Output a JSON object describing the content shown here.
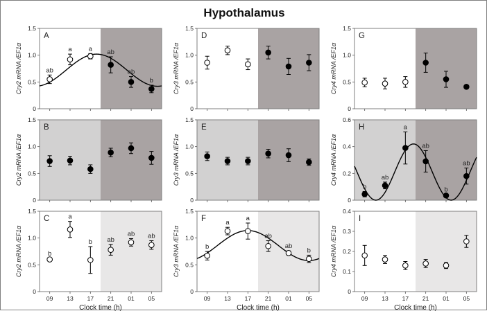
{
  "title": "Hypothalamus",
  "colors": {
    "dark_shade": "#a9a3a3",
    "light_shade": "#d2d1d1",
    "lighter_shade": "#e8e7e7",
    "frame": "#7f7f7f",
    "point_fill_dark": "#000000",
    "point_fill_open": "#ffffff",
    "curve": "#000000"
  },
  "x_axis": {
    "tick_labels": [
      "09",
      "13",
      "17",
      "21",
      "01",
      "05"
    ],
    "label": "Clock time (h)"
  },
  "chart_data": [
    {
      "id": "A",
      "type": "scatter",
      "label": "A",
      "ylabel": "Cry2 mRNA /EF1α",
      "ylim": [
        0,
        1.5
      ],
      "yticks": [
        "0",
        "0.5",
        "1.0",
        "1.5"
      ],
      "shading": [
        {
          "from": 0,
          "to": 3,
          "tone": "none"
        },
        {
          "from": 3,
          "to": 6,
          "tone": "dark"
        }
      ],
      "values": [
        0.55,
        0.92,
        0.98,
        0.82,
        0.5,
        0.37
      ],
      "errors": [
        0.08,
        0.1,
        0.05,
        0.15,
        0.1,
        0.07
      ],
      "filled": [
        false,
        false,
        false,
        true,
        true,
        true
      ],
      "sig": [
        "ab",
        "a",
        "a",
        "ab",
        "ab",
        "b"
      ],
      "fit": {
        "mesor": 0.72,
        "amplitude": 0.3,
        "acrophase_index": 2.3
      }
    },
    {
      "id": "D",
      "type": "scatter",
      "label": "D",
      "ylabel": "Cry3 mRNA /EF1α",
      "ylim": [
        0,
        1.5
      ],
      "yticks": [
        "0",
        "0.5",
        "1.0",
        "1.5"
      ],
      "shading": [
        {
          "from": 0,
          "to": 3,
          "tone": "none"
        },
        {
          "from": 3,
          "to": 6,
          "tone": "dark"
        }
      ],
      "values": [
        0.86,
        1.09,
        0.83,
        1.05,
        0.79,
        0.86
      ],
      "errors": [
        0.12,
        0.08,
        0.1,
        0.12,
        0.15,
        0.15
      ],
      "filled": [
        false,
        false,
        false,
        true,
        true,
        true
      ],
      "sig": []
    },
    {
      "id": "G",
      "type": "scatter",
      "label": "G",
      "ylabel": "Cry4 mRNA /EF1α",
      "ylim": [
        0,
        1.5
      ],
      "yticks": [
        "0",
        "0.5",
        "1.0",
        "1.5"
      ],
      "shading": [
        {
          "from": 0,
          "to": 3,
          "tone": "none"
        },
        {
          "from": 3,
          "to": 6,
          "tone": "dark"
        }
      ],
      "values": [
        0.49,
        0.47,
        0.5,
        0.86,
        0.55,
        0.41
      ],
      "errors": [
        0.08,
        0.1,
        0.1,
        0.18,
        0.15,
        0.02
      ],
      "filled": [
        false,
        false,
        false,
        true,
        true,
        true
      ],
      "sig": []
    },
    {
      "id": "B",
      "type": "scatter",
      "label": "B",
      "ylabel": "Cry2 mRNA /EF1α",
      "ylim": [
        0,
        1.5
      ],
      "yticks": [
        "0",
        "0.5",
        "1.0",
        "1.5"
      ],
      "shading": [
        {
          "from": 0,
          "to": 3,
          "tone": "light"
        },
        {
          "from": 3,
          "to": 6,
          "tone": "dark"
        }
      ],
      "values": [
        0.73,
        0.74,
        0.58,
        0.89,
        0.97,
        0.79
      ],
      "errors": [
        0.1,
        0.08,
        0.08,
        0.08,
        0.1,
        0.12
      ],
      "filled": [
        true,
        true,
        true,
        true,
        true,
        true
      ],
      "sig": []
    },
    {
      "id": "E",
      "type": "scatter",
      "label": "E",
      "ylabel": "Cry3 mRNA /EF1α",
      "ylim": [
        0,
        1.5
      ],
      "yticks": [
        "0",
        "0.5",
        "1.0",
        "1.5"
      ],
      "shading": [
        {
          "from": 0,
          "to": 3,
          "tone": "light"
        },
        {
          "from": 3,
          "to": 6,
          "tone": "dark"
        }
      ],
      "values": [
        0.82,
        0.73,
        0.73,
        0.87,
        0.84,
        0.71
      ],
      "errors": [
        0.08,
        0.07,
        0.07,
        0.08,
        0.12,
        0.06
      ],
      "filled": [
        true,
        true,
        true,
        true,
        true,
        true
      ],
      "sig": []
    },
    {
      "id": "H",
      "type": "scatter",
      "label": "H",
      "ylabel": "Cry4 mRNA /EF1α",
      "ylim": [
        0,
        0.6
      ],
      "yticks": [
        "0",
        "0.2",
        "0.4",
        "0.6"
      ],
      "shading": [
        {
          "from": 0,
          "to": 3,
          "tone": "light"
        },
        {
          "from": 3,
          "to": 6,
          "tone": "dark"
        }
      ],
      "values": [
        0.045,
        0.11,
        0.39,
        0.29,
        0.035,
        0.18
      ],
      "errors": [
        0.02,
        0.025,
        0.12,
        0.08,
        0.01,
        0.06
      ],
      "filled": [
        true,
        true,
        true,
        true,
        true,
        true
      ],
      "sig": [
        "b",
        "ab",
        "a",
        "ab",
        "b",
        "ab"
      ],
      "fit": {
        "mesor": 0.21,
        "amplitude": 0.21,
        "acrophase_index": 2.4,
        "period_index": 3.7
      }
    },
    {
      "id": "C",
      "type": "scatter",
      "label": "C",
      "ylabel": "Cry2 mRNA /EF1α",
      "ylim": [
        0,
        1.5
      ],
      "yticks": [
        "0",
        "0.5",
        "1.0",
        "1.5"
      ],
      "shading": [
        {
          "from": 0,
          "to": 3,
          "tone": "none"
        },
        {
          "from": 3,
          "to": 6,
          "tone": "lighter"
        }
      ],
      "values": [
        0.6,
        1.16,
        0.59,
        0.78,
        0.92,
        0.87
      ],
      "errors": [
        0.02,
        0.15,
        0.25,
        0.1,
        0.07,
        0.08
      ],
      "filled": [
        false,
        false,
        false,
        false,
        false,
        false
      ],
      "sig": [
        "b",
        "a",
        "b",
        "ab",
        "ab",
        "ab"
      ]
    },
    {
      "id": "F",
      "type": "scatter",
      "label": "F",
      "ylabel": "Cry3 mRNA /EF1α",
      "ylim": [
        0,
        1.5
      ],
      "yticks": [
        "0",
        "0.5",
        "1.0",
        "1.5"
      ],
      "shading": [
        {
          "from": 0,
          "to": 3,
          "tone": "none"
        },
        {
          "from": 3,
          "to": 6,
          "tone": "lighter"
        }
      ],
      "values": [
        0.67,
        1.13,
        1.13,
        0.85,
        0.72,
        0.61
      ],
      "errors": [
        0.08,
        0.07,
        0.15,
        0.1,
        0.04,
        0.07
      ],
      "filled": [
        false,
        false,
        false,
        false,
        false,
        false
      ],
      "sig": [
        "b",
        "a",
        "a",
        "ab",
        "ab",
        "b"
      ],
      "fit": {
        "mesor": 0.86,
        "amplitude": 0.28,
        "acrophase_index": 2.0
      }
    },
    {
      "id": "I",
      "type": "scatter",
      "label": "I",
      "ylabel": "Cry4 mRNA /EF1α",
      "ylim": [
        0,
        0.4
      ],
      "yticks": [
        "0",
        "0.1",
        "0.2",
        "0.3",
        "0.4"
      ],
      "shading": [
        {
          "from": 0,
          "to": 3,
          "tone": "none"
        },
        {
          "from": 3,
          "to": 6,
          "tone": "lighter"
        }
      ],
      "values": [
        0.18,
        0.16,
        0.13,
        0.14,
        0.13,
        0.25
      ],
      "errors": [
        0.05,
        0.02,
        0.02,
        0.02,
        0.015,
        0.03
      ],
      "filled": [
        false,
        false,
        false,
        false,
        false,
        false
      ],
      "sig": []
    }
  ]
}
